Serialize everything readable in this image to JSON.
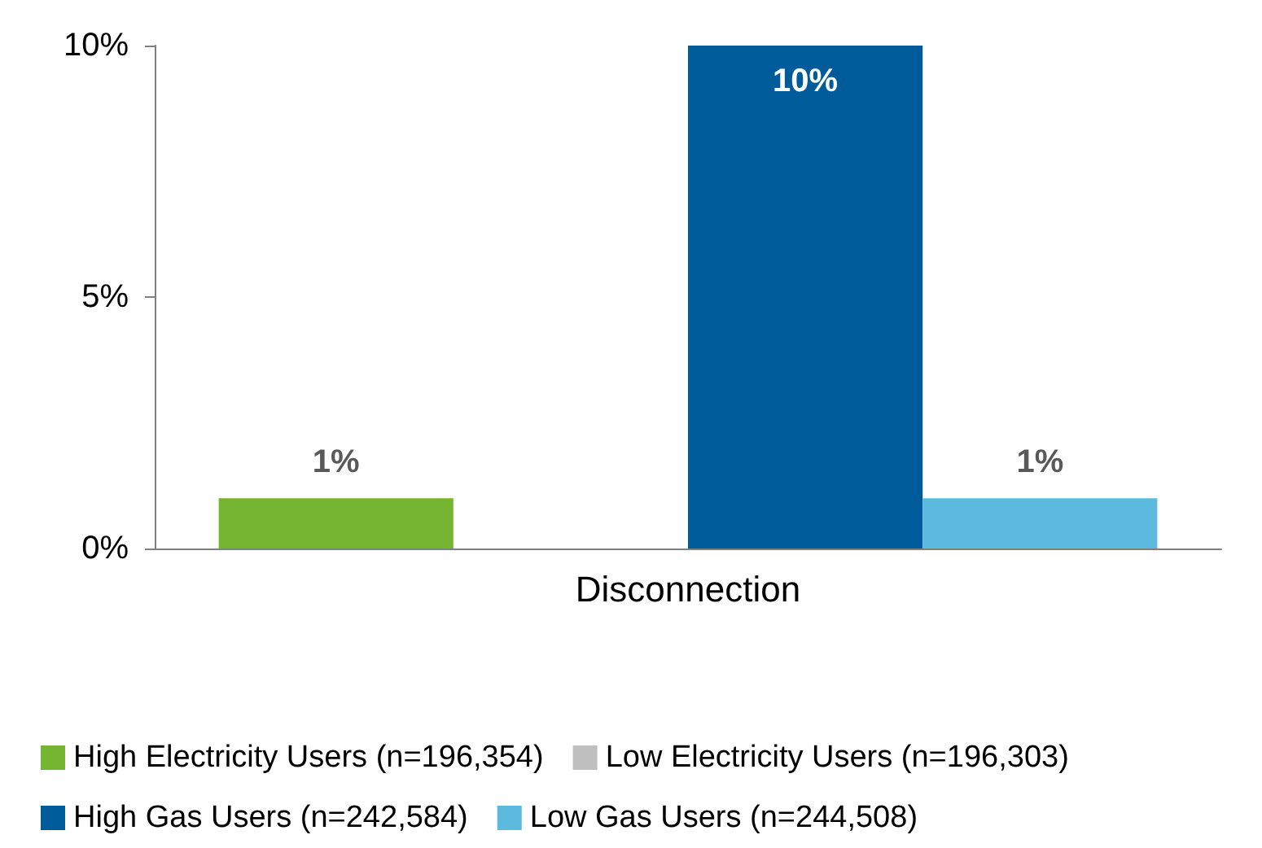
{
  "chart_data": {
    "type": "bar",
    "categories": [
      "Disconnection"
    ],
    "series": [
      {
        "name": "High Electricity Users (n=196,354)",
        "color": "#76b531",
        "values": [
          1
        ],
        "value_labels": [
          "1%"
        ]
      },
      {
        "name": "Low Electricity Users (n=196,303)",
        "color": "#bfbfbf",
        "values": [
          null
        ],
        "value_labels": [
          null
        ]
      },
      {
        "name": "High Gas Users (n=242,584)",
        "color": "#005b9a",
        "values": [
          10
        ],
        "value_labels": [
          "10%"
        ]
      },
      {
        "name": "Low Gas Users (n=244,508)",
        "color": "#5dbadf",
        "values": [
          1
        ],
        "value_labels": [
          "1%"
        ]
      }
    ],
    "ylim": [
      0,
      10
    ],
    "yticks": [
      {
        "value": 0,
        "label": "0%"
      },
      {
        "value": 5,
        "label": "5%"
      },
      {
        "value": 10,
        "label": "10%"
      }
    ],
    "grid": false,
    "legend": "bottom"
  }
}
